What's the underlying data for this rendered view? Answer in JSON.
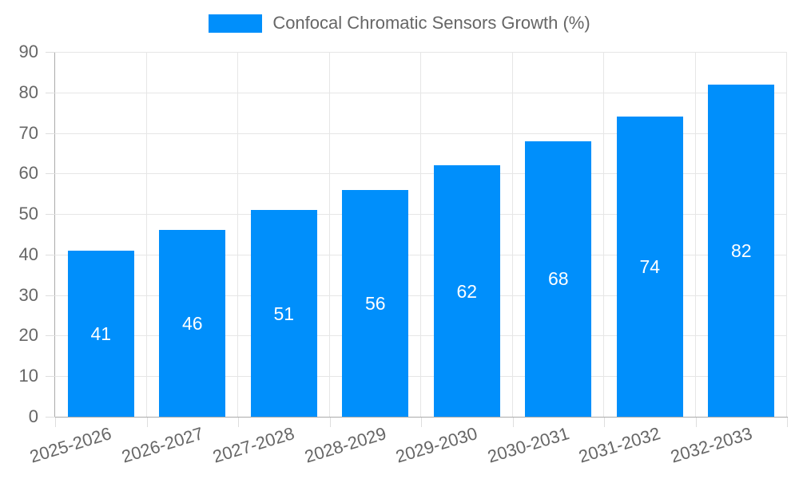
{
  "chart_data": {
    "type": "bar",
    "title": "",
    "series_name": "Confocal Chromatic Sensors Growth (%)",
    "categories": [
      "2025-2026",
      "2026-2027",
      "2027-2028",
      "2028-2029",
      "2029-2030",
      "2030-2031",
      "2031-2032",
      "2032-2033"
    ],
    "values": [
      41,
      46,
      51,
      56,
      62,
      68,
      74,
      82
    ],
    "xlabel": "",
    "ylabel": "",
    "ylim": [
      0,
      90
    ],
    "ytick_step": 10,
    "yticks": [
      0,
      10,
      20,
      30,
      40,
      50,
      60,
      70,
      80,
      90
    ],
    "grid": true,
    "legend_position": "top",
    "bar_color": "#008FFB",
    "bar_label_color": "#FFFFFF",
    "axis_text_color": "#666666",
    "gridline_color": "#E6E6E6",
    "axis_line_color": "#ABABAB"
  }
}
